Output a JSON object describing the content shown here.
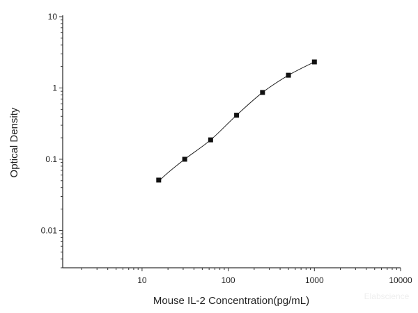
{
  "chart_data": {
    "type": "scatter",
    "title": "",
    "xlabel": "Mouse IL-2 Concentration(pg/mL)",
    "ylabel": "Optical Density",
    "xscale": "log",
    "yscale": "log",
    "xlim": [
      1.2,
      10000
    ],
    "ylim": [
      0.003,
      10
    ],
    "x_ticks": [
      10,
      100,
      1000,
      10000
    ],
    "x_tick_labels": [
      "10",
      "100",
      "1000",
      "10000"
    ],
    "y_ticks": [
      0.01,
      0.1,
      1,
      10
    ],
    "y_tick_labels": [
      "0.01",
      "0.1",
      "1",
      "10"
    ],
    "grid": false,
    "legend": "none",
    "marker": "square",
    "fit_curve": true,
    "series": [
      {
        "x": [
          15.6,
          31.25,
          62.5,
          125,
          250,
          500,
          1000
        ],
        "y": [
          0.051,
          0.1,
          0.187,
          0.415,
          0.865,
          1.51,
          2.32
        ],
        "color": "#111111"
      }
    ]
  },
  "watermark": "Elabscience"
}
